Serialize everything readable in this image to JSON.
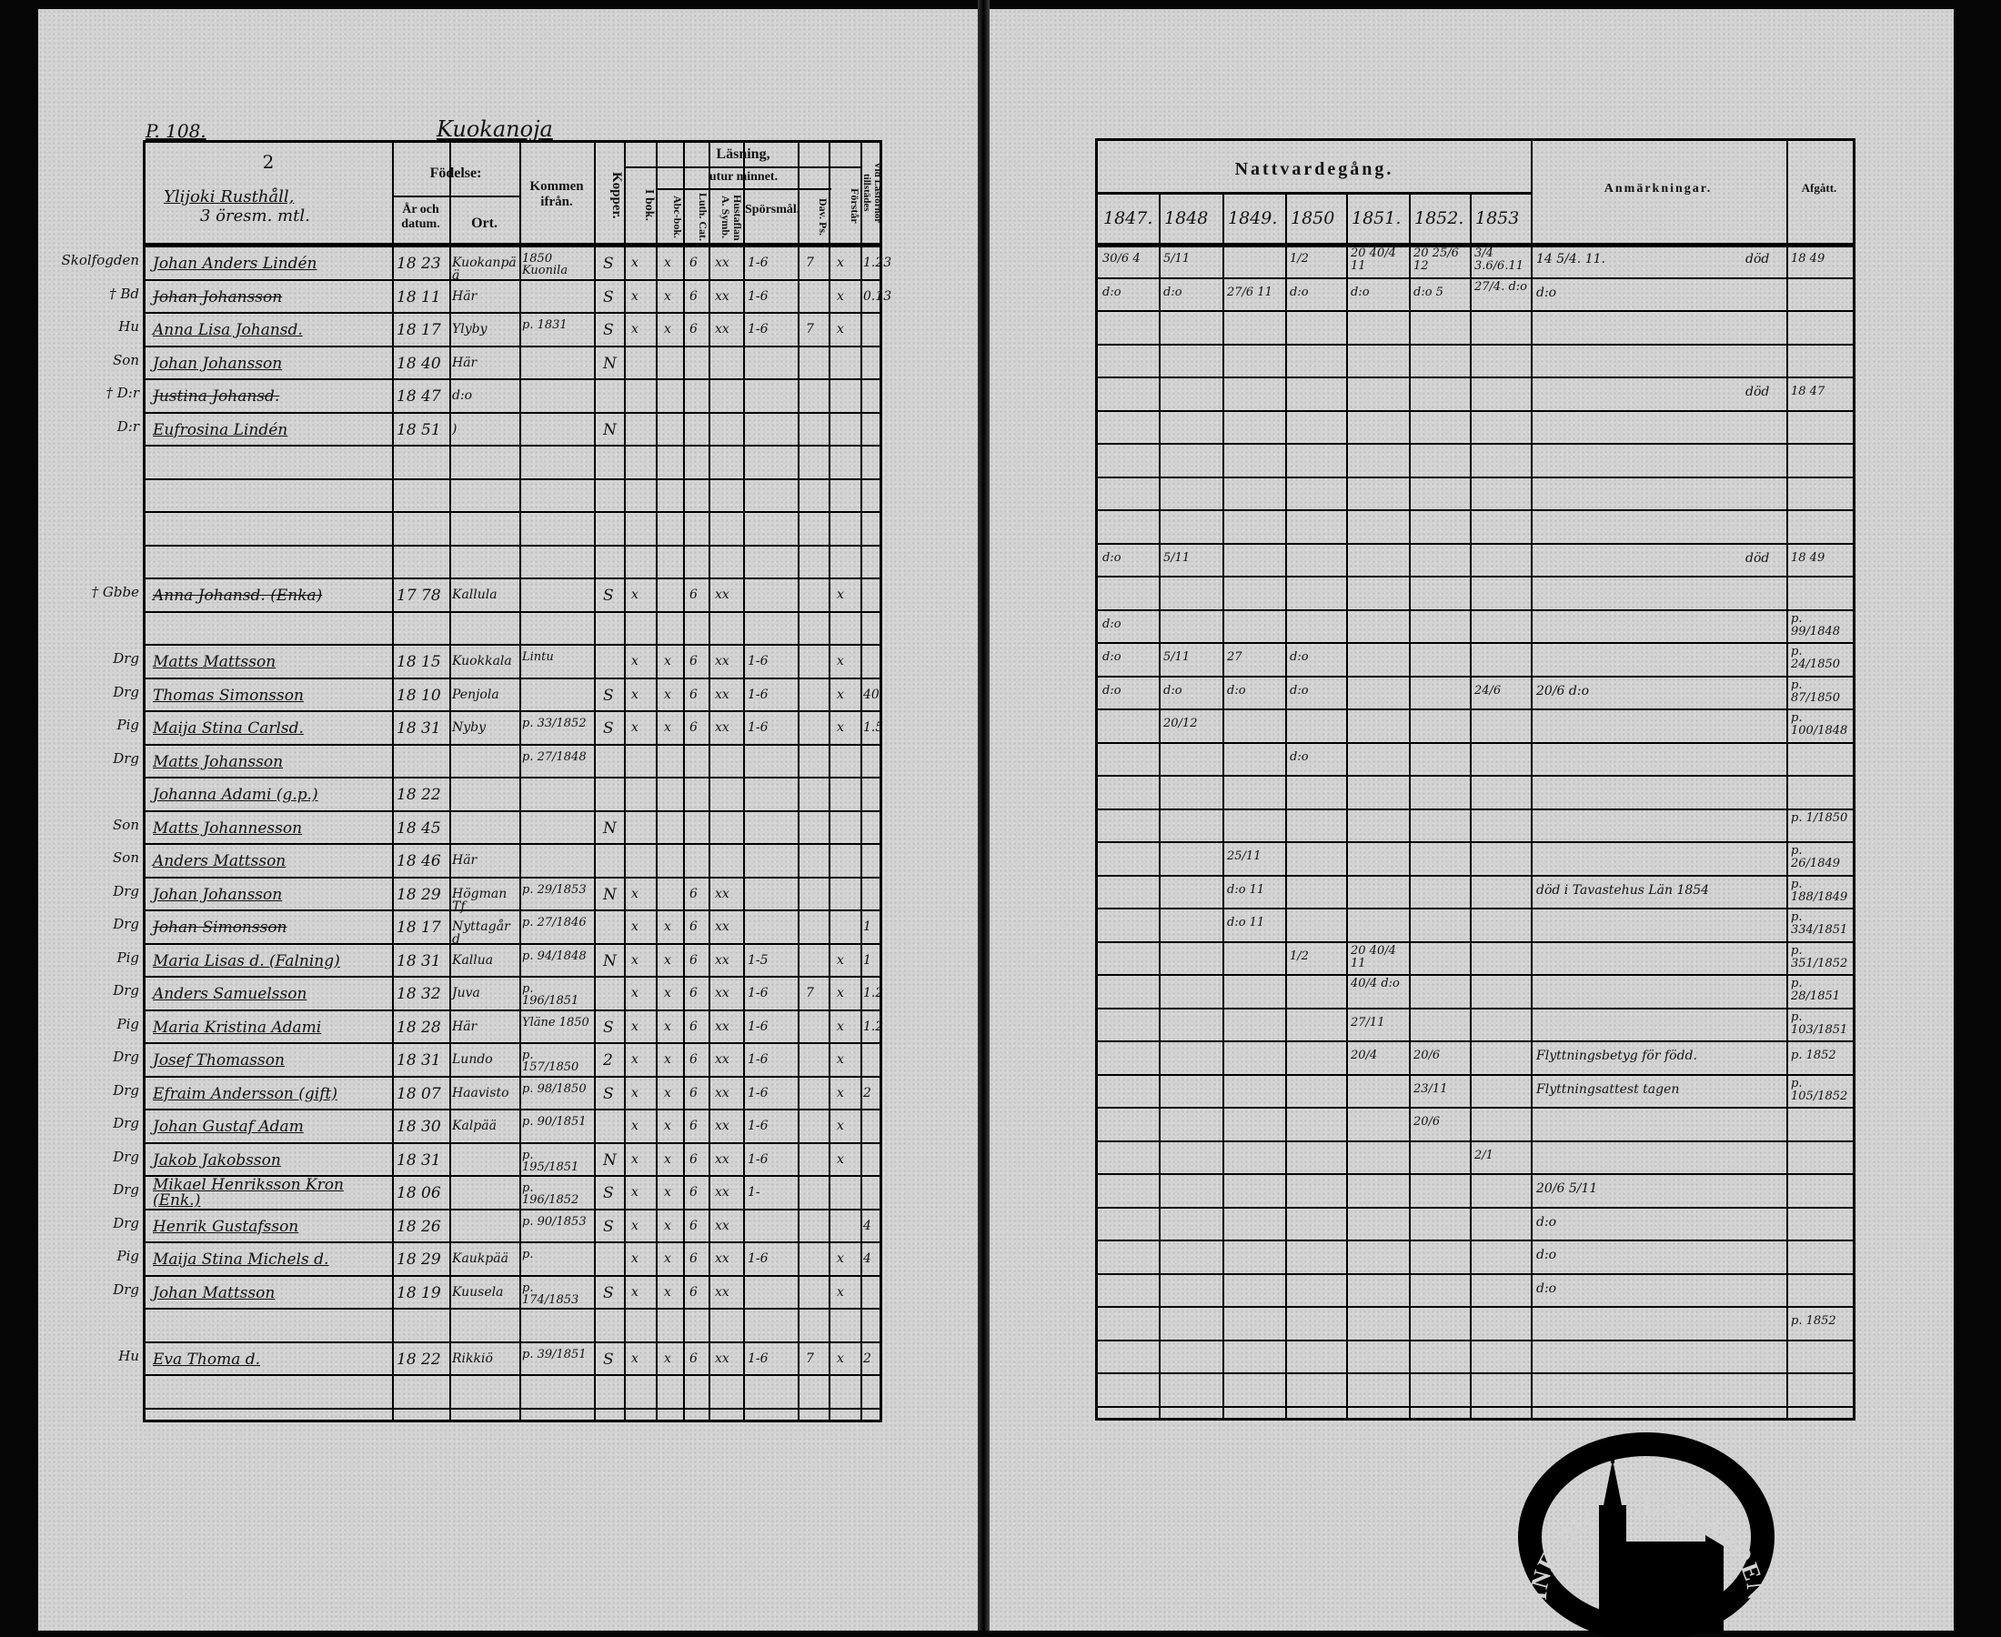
{
  "left_page": {
    "page_number": "P. 108.",
    "village": "Kuokanoja",
    "header": {
      "number": "2",
      "farm": "Ylijoki Rusthåll,",
      "farm_sub": "3 öresm. mtl.",
      "fodelse": "Födelse:",
      "ar_och_datum": "År och datum.",
      "ort": "Ort.",
      "kommen_ifran": "Kommen ifrån.",
      "kopper": "Kopper.",
      "lasning": "Läsning,",
      "utur_minnet": "utur minnet.",
      "i_bok": "I bok.",
      "abc_bok": "Abc-bok.",
      "luth_cat": "Luth. Cat.",
      "hustaflan": "Hustaflan A. Symb.",
      "sporsmal": "Spörsmål.",
      "dav_ps": "Dav. Ps.",
      "forstar": "Förstår",
      "vid_lasforhor": "Vid Läsförhör tillstädes"
    },
    "rows": [
      {
        "margin": "Skolfogden",
        "name": "Johan Anders Lindén",
        "birth": "18 23",
        "ort": "Kuokanpää",
        "from": "1850 Kuonila",
        "kopper": "S",
        "lasning": [
          "x",
          "x",
          "6",
          "xx",
          "1-6",
          "7",
          "x",
          "1.23"
        ]
      },
      {
        "margin": "† Bd",
        "name": "Johan Johansson",
        "struck": true,
        "birth": "18 11",
        "ort": "Här",
        "kopper": "S",
        "lasning": [
          "x",
          "x",
          "6",
          "xx",
          "1-6",
          "",
          "x",
          "0.13"
        ]
      },
      {
        "margin": "Hu",
        "name": "Anna Lisa Johansd.",
        "birth": "18 17",
        "ort": "Ylyby",
        "from": "p. 1831",
        "kopper": "S",
        "lasning": [
          "x",
          "x",
          "6",
          "xx",
          "1-6",
          "7",
          "x",
          ""
        ]
      },
      {
        "margin": "Son",
        "name": "Johan Johansson",
        "birth": "18 40",
        "ort": "Här",
        "kopper": "N"
      },
      {
        "margin": "† D:r",
        "name": "Justina Johansd.",
        "struck": true,
        "birth": "18 47",
        "ort": "d:o"
      },
      {
        "margin": "D:r",
        "name": "Eufrosina Lindén",
        "birth": "18 51",
        "ort": ")",
        "kopper": "N"
      },
      {},
      {},
      {},
      {},
      {
        "margin": "† Gbbe",
        "name": "Anna Johansd. (Enka)",
        "struck": true,
        "birth": "17 78",
        "ort": "Kallula",
        "kopper": "S",
        "lasning": [
          "x",
          "",
          "6",
          "xx",
          "",
          "",
          "x",
          ""
        ]
      },
      {},
      {
        "margin": "Drg",
        "name": "Matts Mattsson",
        "birth": "18 15",
        "ort": "Kuokkala",
        "from": "Lintu",
        "lasning": [
          "x",
          "x",
          "6",
          "xx",
          "1-6",
          "",
          "x",
          ""
        ]
      },
      {
        "margin": "Drg",
        "name": "Thomas Simonsson",
        "birth": "18 10",
        "ort": "Penjola",
        "kopper": "S",
        "lasning": [
          "x",
          "x",
          "6",
          "xx",
          "1-6",
          "",
          "x",
          "40"
        ]
      },
      {
        "margin": "Pig",
        "name": "Maija Stina Carlsd.",
        "birth": "18 31",
        "ort": "Nyby",
        "from": "p. 33/1852",
        "kopper": "S",
        "lasning": [
          "x",
          "x",
          "6",
          "xx",
          "1-6",
          "",
          "x",
          "1.5"
        ]
      },
      {
        "margin": "Drg",
        "name": "Matts Johansson",
        "from": "p. 27/1848"
      },
      {
        "margin": "",
        "name": "Johanna Adami (g.p.)",
        "birth": "18 22"
      },
      {
        "margin": "Son",
        "name": "Matts Johannesson",
        "birth": "18 45",
        "kopper": "N"
      },
      {
        "margin": "Son",
        "name": "Anders Mattsson",
        "birth": "18 46",
        "ort": "Här"
      },
      {
        "margin": "Drg",
        "name": "Johan Johansson",
        "birth": "18 29",
        "ort": "Högman Tf",
        "from": "p. 29/1853",
        "kopper": "N",
        "lasning": [
          "x",
          "",
          "6",
          "xx",
          "",
          "",
          "",
          ""
        ]
      },
      {
        "margin": "Drg",
        "name": "Johan Simonsson",
        "struck": true,
        "birth": "18 17",
        "ort": "Nyttagård",
        "from": "p. 27/1846",
        "lasning": [
          "x",
          "x",
          "6",
          "xx",
          "",
          "",
          "",
          "1"
        ]
      },
      {
        "margin": "Pig",
        "name": "Maria Lisas d. (Falning)",
        "birth": "18 31",
        "ort": "Kallua",
        "from": "p. 94/1848",
        "kopper": "N",
        "lasning": [
          "x",
          "x",
          "6",
          "xx",
          "1-5",
          "",
          "x",
          "1"
        ]
      },
      {
        "margin": "Drg",
        "name": "Anders Samuelsson",
        "birth": "18 32",
        "ort": "Juva",
        "from": "p. 196/1851",
        "lasning": [
          "x",
          "x",
          "6",
          "xx",
          "1-6",
          "7",
          "x",
          "1.2"
        ]
      },
      {
        "margin": "Pig",
        "name": "Maria Kristina Adami",
        "birth": "18 28",
        "ort": "Här",
        "from": "Yläne 1850",
        "kopper": "S",
        "lasning": [
          "x",
          "x",
          "6",
          "xx",
          "1-6",
          "",
          "x",
          "1.2"
        ]
      },
      {
        "margin": "Drg",
        "name": "Josef Thomasson",
        "birth": "18 31",
        "ort": "Lundo",
        "from": "p. 157/1850",
        "kopper": "2",
        "lasning": [
          "x",
          "x",
          "6",
          "xx",
          "1-6",
          "",
          "x",
          ""
        ]
      },
      {
        "margin": "Drg",
        "name": "Efraim Andersson (gift)",
        "birth": "18 07",
        "ort": "Haavisto",
        "from": "p. 98/1850",
        "kopper": "S",
        "lasning": [
          "x",
          "x",
          "6",
          "xx",
          "1-6",
          "",
          "x",
          "2"
        ]
      },
      {
        "margin": "Drg",
        "name": "Johan Gustaf Adam",
        "birth": "18 30",
        "ort": "Kalpää",
        "from": "p. 90/1851",
        "lasning": [
          "x",
          "x",
          "6",
          "xx",
          "1-6",
          "",
          "x",
          ""
        ]
      },
      {
        "margin": "Drg",
        "name": "Jakob Jakobsson",
        "birth": "18 31",
        "from": "p. 195/1851",
        "kopper": "N",
        "lasning": [
          "x",
          "x",
          "6",
          "xx",
          "1-6",
          "",
          "x",
          ""
        ]
      },
      {
        "margin": "Drg",
        "name": "Mikael Henriksson Kron (Enk.)",
        "birth": "18 06",
        "from": "p. 196/1852",
        "kopper": "S",
        "lasning": [
          "x",
          "x",
          "6",
          "xx",
          "1-",
          "",
          "",
          ""
        ]
      },
      {
        "margin": "Drg",
        "name": "Henrik Gustafsson",
        "birth": "18 26",
        "from": "p. 90/1853",
        "kopper": "S",
        "lasning": [
          "x",
          "x",
          "6",
          "xx",
          "",
          "",
          "",
          "4"
        ]
      },
      {
        "margin": "Pig",
        "name": "Maija Stina Michels d.",
        "birth": "18 29",
        "ort": "Kaukpää",
        "from": "p.",
        "lasning": [
          "x",
          "x",
          "6",
          "xx",
          "1-6",
          "",
          "x",
          "4"
        ]
      },
      {
        "margin": "Drg",
        "name": "Johan Mattsson",
        "birth": "18 19",
        "ort": "Kuusela",
        "from": "p. 174/1853",
        "kopper": "S",
        "lasning": [
          "x",
          "x",
          "6",
          "xx",
          "",
          "",
          "x",
          ""
        ]
      },
      {},
      {
        "margin": "Hu",
        "name": "Eva Thoma d.",
        "birth": "18 22",
        "ort": "Rikkiö",
        "from": "p. 39/1851",
        "kopper": "S",
        "lasning": [
          "x",
          "x",
          "6",
          "xx",
          "1-6",
          "7",
          "x",
          "2"
        ]
      },
      {},
      {}
    ]
  },
  "right_page": {
    "header": {
      "nattvardegang": "Nattvardegång.",
      "years": [
        "1847.",
        "1848",
        "1849.",
        "1850",
        "1851.",
        "1852.",
        "1853"
      ],
      "anmarkningar": "Anmärkningar.",
      "afgatt": "Afgått."
    },
    "rows": [
      {
        "marks": [
          "30/6 4",
          "5/11",
          "",
          "1/2",
          "20 40/4 11",
          "20 25/6 12",
          "3/4 3.6/6.11"
        ],
        "anm": "14 5/4. 11.",
        "died": "död",
        "afgatt": "18 49"
      },
      {
        "marks": [
          "d:o",
          "d:o",
          "27/6 11",
          "d:o",
          "d:o",
          "d:o 5",
          "27/4. d:o"
        ],
        "anm": "d:o"
      },
      {},
      {},
      {
        "died": "död",
        "afgatt": "18 47"
      },
      {},
      {},
      {},
      {},
      {
        "marks": [
          "d:o",
          "5/11",
          "",
          "",
          "",
          "",
          ""
        ],
        "died": "död",
        "afgatt": "18 49"
      },
      {},
      {
        "marks": [
          "d:o",
          "",
          "",
          "",
          "",
          "",
          ""
        ],
        "afgatt": "p. 99/1848"
      },
      {
        "marks": [
          "d:o",
          "5/11",
          "27",
          "d:o",
          "",
          "",
          ""
        ],
        "afgatt": "p. 24/1850"
      },
      {
        "marks": [
          "d:o",
          "d:o",
          "d:o",
          "d:o",
          "",
          "",
          "24/6"
        ],
        "anm": "20/6 d:o",
        "afgatt": "p. 87/1850"
      },
      {
        "marks": [
          "",
          "20/12",
          "",
          "",
          "",
          "",
          ""
        ],
        "afgatt": "p. 100/1848"
      },
      {
        "marks": [
          "",
          "",
          "",
          "d:o",
          "",
          "",
          ""
        ]
      },
      {},
      {
        "afgatt": "p. 1/1850"
      },
      {
        "marks": [
          "",
          "",
          "25/11",
          "",
          "",
          "",
          ""
        ],
        "afgatt": "p. 26/1849"
      },
      {
        "marks": [
          "",
          "",
          "d:o 11",
          "",
          "",
          "",
          ""
        ],
        "anm": "död i Tavastehus Län 1854",
        "afgatt": "p. 188/1849"
      },
      {
        "marks": [
          "",
          "",
          "d:o 11",
          "",
          "",
          "",
          ""
        ],
        "afgatt": "p. 334/1851"
      },
      {
        "marks": [
          "",
          "",
          "",
          "1/2",
          "20 40/4 11",
          "",
          ""
        ],
        "afgatt": "p. 351/1852"
      },
      {
        "marks": [
          "",
          "",
          "",
          "",
          "40/4 d:o",
          "",
          ""
        ],
        "afgatt": "p. 28/1851"
      },
      {
        "marks": [
          "",
          "",
          "",
          "",
          "27/11",
          "",
          ""
        ],
        "afgatt": "p. 103/1851"
      },
      {
        "marks": [
          "",
          "",
          "",
          "",
          "20/4",
          "20/6",
          ""
        ],
        "anm": "Flyttningsbetyg för född.",
        "afgatt": "p. 1852"
      },
      {
        "marks": [
          "",
          "",
          "",
          "",
          "",
          "23/11",
          ""
        ],
        "anm": "Flyttningsattest tagen",
        "afgatt": "p. 105/1852"
      },
      {
        "marks": [
          "",
          "",
          "",
          "",
          "",
          "20/6",
          ""
        ]
      },
      {
        "marks": [
          "",
          "",
          "",
          "",
          "",
          "",
          "2/1"
        ]
      },
      {
        "anm": "20/6 5/11"
      },
      {
        "anm": "d:o"
      },
      {
        "anm": "d:o"
      },
      {
        "anm": "d:o"
      },
      {
        "afgatt": "p. 1852"
      },
      {},
      {},
      {}
    ]
  },
  "stamp": {
    "text": "INF. DIOECESIS ABOENSIS. MAG."
  },
  "colors": {
    "paper": "#d3d3d3",
    "ink": "#111111",
    "background": "#050505"
  }
}
